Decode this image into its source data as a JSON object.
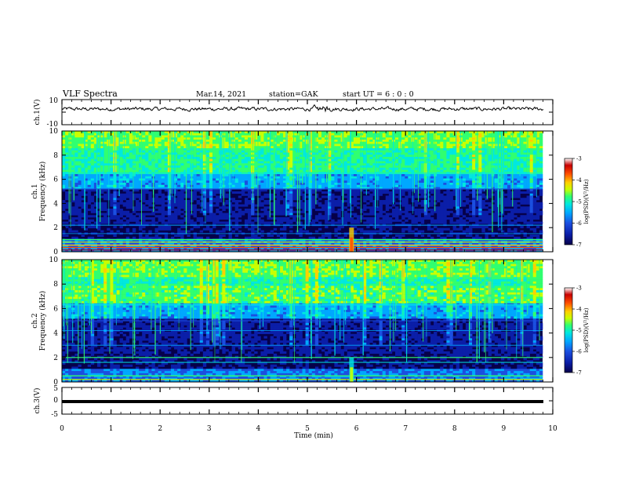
{
  "header": {
    "title": "VLF Spectra",
    "date": "Mar.14, 2021",
    "station": "station=GAK",
    "start": "start  UT  =   6 : 0  : 0"
  },
  "colors": {
    "colormap": [
      "#06004a",
      "#0b1ea8",
      "#1b4fe0",
      "#00a8ff",
      "#00e8e0",
      "#30ff70",
      "#c8ff00",
      "#ffd000",
      "#ff5000",
      "#c80000",
      "#ffffff"
    ]
  },
  "chart_data": [
    {
      "type": "line",
      "panel": "ch1-waveform",
      "ylabel": "ch.1(V)",
      "ylim": [
        -10,
        10
      ],
      "yticks": [
        10,
        -10
      ],
      "xlim": [
        0,
        10
      ],
      "baseline": 2.5
    },
    {
      "type": "heatmap",
      "panel": "ch1-spectrogram",
      "ylabel": "ch.1 Frequency (kHz)",
      "ylim": [
        0,
        10
      ],
      "yticks": [
        0,
        2,
        4,
        6,
        8,
        10
      ],
      "xlim": [
        0,
        10
      ],
      "colorbar": {
        "label": "log(PSD)(V²/Hz)",
        "range": [
          -7,
          -3
        ],
        "ticks": [
          -3,
          -4,
          -5,
          -6,
          -7
        ]
      }
    },
    {
      "type": "heatmap",
      "panel": "ch2-spectrogram",
      "ylabel": "ch.2 Frequency (kHz)",
      "ylim": [
        0,
        10
      ],
      "yticks": [
        0,
        2,
        4,
        6,
        8,
        10
      ],
      "xlim": [
        0,
        10
      ],
      "colorbar": {
        "label": "log(PSD)(V²/Hz)",
        "range": [
          -7,
          -3
        ],
        "ticks": [
          -3,
          -4,
          -5,
          -6,
          -7
        ]
      }
    },
    {
      "type": "line",
      "panel": "ch3-waveform",
      "ylabel": "ch.3(V)",
      "ylim": [
        -5,
        5
      ],
      "yticks": [
        5,
        0,
        -5
      ],
      "xlim": [
        0,
        10
      ],
      "baseline": -1.5
    }
  ],
  "xaxis": {
    "label": "Time  (min)",
    "ticks": [
      "0",
      "1",
      "2",
      "3",
      "4",
      "5",
      "6",
      "7",
      "8",
      "9",
      "10"
    ]
  },
  "colorbar_text": {
    "label": "log(PSD)(V²/Hz)",
    "ticks": [
      "-3",
      "-4",
      "-5",
      "-6",
      "-7"
    ]
  }
}
